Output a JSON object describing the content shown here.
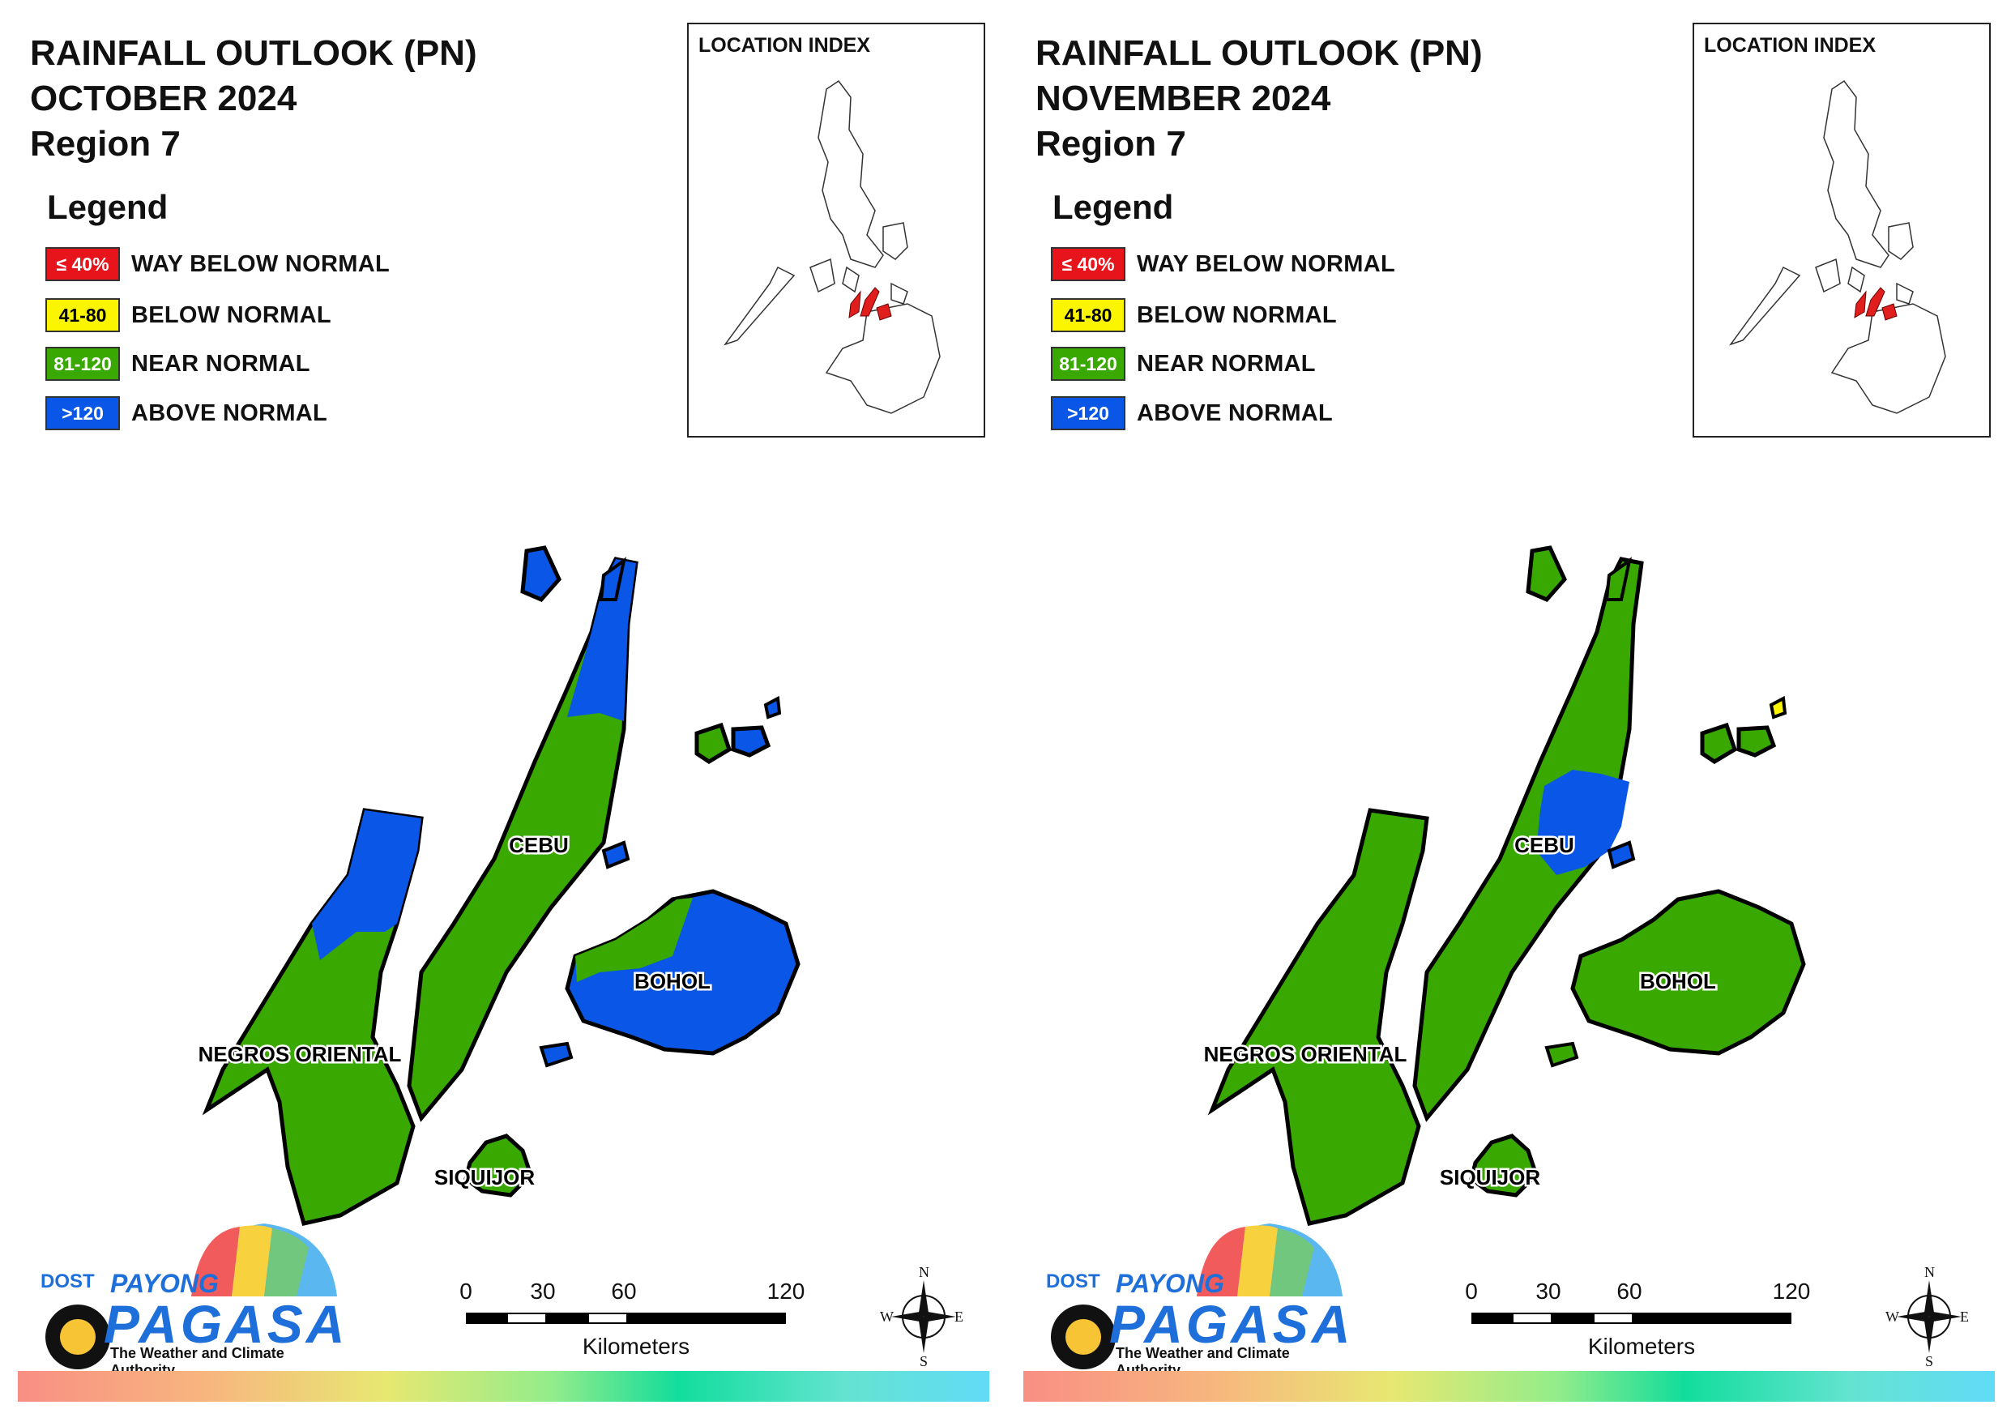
{
  "legend": {
    "title": "Legend",
    "items": [
      {
        "swatch": "≤ 40%",
        "label": "WAY BELOW NORMAL",
        "color": "#e8141b",
        "text_color": "#ffffff"
      },
      {
        "swatch": "41-80",
        "label": "BELOW NORMAL",
        "color": "#fbf500",
        "text_color": "#000000"
      },
      {
        "swatch": "81-120",
        "label": "NEAR NORMAL",
        "color": "#39a800",
        "text_color": "#ffffff"
      },
      {
        "swatch": ">120",
        "label": "ABOVE NORMAL",
        "color": "#0a56e6",
        "text_color": "#ffffff"
      }
    ]
  },
  "inset": {
    "title": "LOCATION INDEX",
    "highlight_color": "#e11e1e"
  },
  "provinces": {
    "cebu": "CEBU",
    "bohol": "BOHOL",
    "negros_oriental": "NEGROS ORIENTAL",
    "siquijor": "SIQUIJOR"
  },
  "maps": [
    {
      "title_line1": "RAINFALL OUTLOOK (PN)",
      "title_line2": "OCTOBER 2024",
      "title_line3": "Region 7",
      "categories": {
        "negros_oriental": "NEAR NORMAL (north tip ABOVE NORMAL)",
        "cebu": "NEAR NORMAL (north ABOVE NORMAL)",
        "bohol": "ABOVE NORMAL (northwest NEAR NORMAL)",
        "siquijor": "NEAR NORMAL",
        "camotes": "ABOVE NORMAL (west NEAR NORMAL)"
      }
    },
    {
      "title_line1": "RAINFALL OUTLOOK (PN)",
      "title_line2": "NOVEMBER 2024",
      "title_line3": "Region 7",
      "categories": {
        "negros_oriental": "NEAR NORMAL",
        "cebu": "NEAR NORMAL (central ABOVE NORMAL)",
        "bohol": "NEAR NORMAL",
        "siquijor": "NEAR NORMAL",
        "camotes": "NEAR NORMAL (east tip BELOW NORMAL)"
      }
    }
  ],
  "scale": {
    "ticks": [
      "0",
      "30",
      "60",
      "120"
    ],
    "unit": "Kilometers"
  },
  "compass": {
    "n": "N",
    "s": "S",
    "e": "E",
    "w": "W"
  },
  "logo": {
    "dost": "DOST",
    "payong": "PAYONG",
    "pagasa": "PAGASA",
    "tagline": "The Weather and Climate Authority"
  }
}
